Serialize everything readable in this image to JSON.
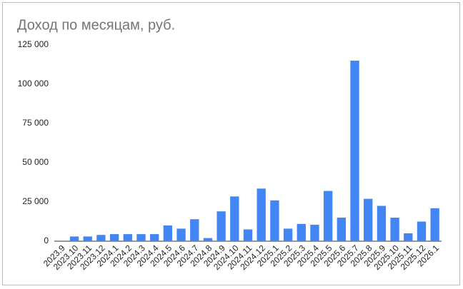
{
  "chart_data": {
    "type": "bar",
    "title": "Доход по месяцам, руб.",
    "categories": [
      "2023.9",
      "2023.10",
      "2023.11",
      "2023.12",
      "2024.1",
      "2024.2",
      "2024.3",
      "2024.4",
      "2024.5",
      "2024.6",
      "2024.7",
      "2024.8",
      "2024.9",
      "2024.10",
      "2024.11",
      "2024.12",
      "2025.1",
      "2025.2",
      "2025.3",
      "2025.4",
      "2025.5",
      "2025.6",
      "2025.7",
      "2025.8",
      "2025.9",
      "2025.10",
      "2025.11",
      "2025.12",
      "2026.1"
    ],
    "values": [
      0,
      3000,
      3000,
      4000,
      4500,
      4500,
      4500,
      4500,
      10000,
      8000,
      14000,
      2000,
      19000,
      28500,
      7500,
      33500,
      26000,
      8000,
      11000,
      10500,
      32000,
      15000,
      115000,
      27000,
      22500,
      15000,
      5000,
      12500,
      21000
    ],
    "color": "#4285f4",
    "ylim": [
      0,
      125000
    ],
    "yticks": [
      0,
      {
        "value": 25000,
        "label": "25 000"
      },
      {
        "value": 50000,
        "label": "50 000"
      },
      {
        "value": 75000,
        "label": "75 000"
      },
      {
        "value": 100000,
        "label": "100 000"
      },
      {
        "value": 125000,
        "label": "125 000"
      }
    ],
    "grid": false
  }
}
